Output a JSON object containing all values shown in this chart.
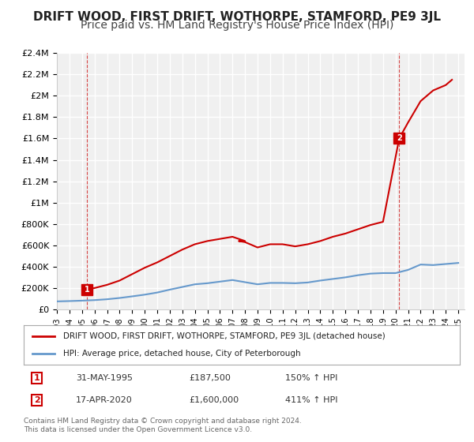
{
  "title": "DRIFT WOOD, FIRST DRIFT, WOTHORPE, STAMFORD, PE9 3JL",
  "subtitle": "Price paid vs. HM Land Registry's House Price Index (HPI)",
  "title_fontsize": 11,
  "subtitle_fontsize": 10,
  "background_color": "#ffffff",
  "plot_background": "#f0f0f0",
  "grid_color": "#ffffff",
  "hpi_line_color": "#6699cc",
  "price_line_color": "#cc0000",
  "ylim": [
    0,
    2400000
  ],
  "yticks": [
    0,
    200000,
    400000,
    600000,
    800000,
    1000000,
    1200000,
    1400000,
    1600000,
    1800000,
    2000000,
    2200000,
    2400000
  ],
  "ytick_labels": [
    "£0",
    "£200K",
    "£400K",
    "£600K",
    "£800K",
    "£1M",
    "£1.2M",
    "£1.4M",
    "£1.6M",
    "£1.8M",
    "£2M",
    "£2.2M",
    "£2.4M"
  ],
  "xlim_start": 1993.0,
  "xlim_end": 2025.5,
  "hpi_years": [
    1993,
    1994,
    1995,
    1996,
    1997,
    1998,
    1999,
    2000,
    2001,
    2002,
    2003,
    2004,
    2005,
    2006,
    2007,
    2008,
    2009,
    2010,
    2011,
    2012,
    2013,
    2014,
    2015,
    2016,
    2017,
    2018,
    2019,
    2020,
    2021,
    2022,
    2023,
    2024,
    2025
  ],
  "hpi_values": [
    75000,
    78000,
    82000,
    87000,
    95000,
    107000,
    122000,
    138000,
    158000,
    185000,
    210000,
    235000,
    245000,
    260000,
    275000,
    255000,
    235000,
    248000,
    248000,
    245000,
    252000,
    270000,
    285000,
    300000,
    320000,
    335000,
    340000,
    340000,
    370000,
    420000,
    415000,
    425000,
    435000
  ],
  "price_years": [
    1995.42,
    2020.29
  ],
  "price_values": [
    187500,
    1600000
  ],
  "marker1_year": 1995.42,
  "marker1_value": 187500,
  "marker1_label": "1",
  "marker2_year": 2020.29,
  "marker2_value": 1600000,
  "marker2_label": "2",
  "legend_line1": "DRIFT WOOD, FIRST DRIFT, WOTHORPE, STAMFORD, PE9 3JL (detached house)",
  "legend_line2": "HPI: Average price, detached house, City of Peterborough",
  "table_row1": [
    "1",
    "31-MAY-1995",
    "£187,500",
    "150% ↑ HPI"
  ],
  "table_row2": [
    "2",
    "17-APR-2020",
    "£1,600,000",
    "411% ↑ HPI"
  ],
  "footer": "Contains HM Land Registry data © Crown copyright and database right 2024.\nThis data is licensed under the Open Government Licence v3.0.",
  "annotation_color": "#cc0000"
}
